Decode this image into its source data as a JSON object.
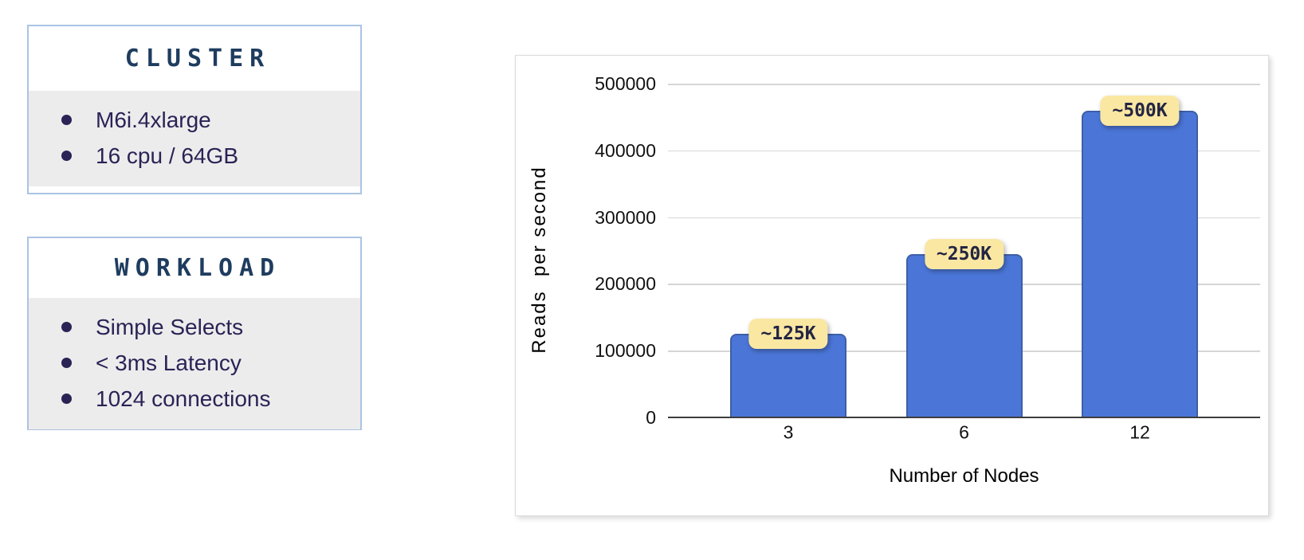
{
  "panels": [
    {
      "title": "CLUSTER",
      "items": [
        "M6i.4xlarge",
        "16 cpu / 64GB"
      ]
    },
    {
      "title": "WORKLOAD",
      "items": [
        "Simple Selects",
        "< 3ms Latency",
        "1024 connections"
      ]
    }
  ],
  "chart_data": {
    "type": "bar",
    "title": "",
    "categories": [
      "3",
      "6",
      "12"
    ],
    "values": [
      125000,
      245000,
      460000
    ],
    "bar_labels": [
      "~125K",
      "~250K",
      "~500K"
    ],
    "xlabel": "Number of Nodes",
    "ylabel": "Reads  per second",
    "ylim": [
      0,
      500000
    ],
    "yticks": [
      0,
      100000,
      200000,
      300000,
      400000,
      500000
    ],
    "grid": true,
    "legend": false
  },
  "colors": {
    "bar_fill": "#4b76d8",
    "bar_border": "#3e5fa6",
    "value_label_bg": "#fae7a2",
    "value_label_text": "#232543",
    "panel_border": "#aac4e4",
    "panel_title": "#1e3c5f",
    "panel_body_bg": "#ececec",
    "panel_text": "#2a2356",
    "gridline": "#d6d6d6",
    "axis_line": "#3d3d3d"
  }
}
